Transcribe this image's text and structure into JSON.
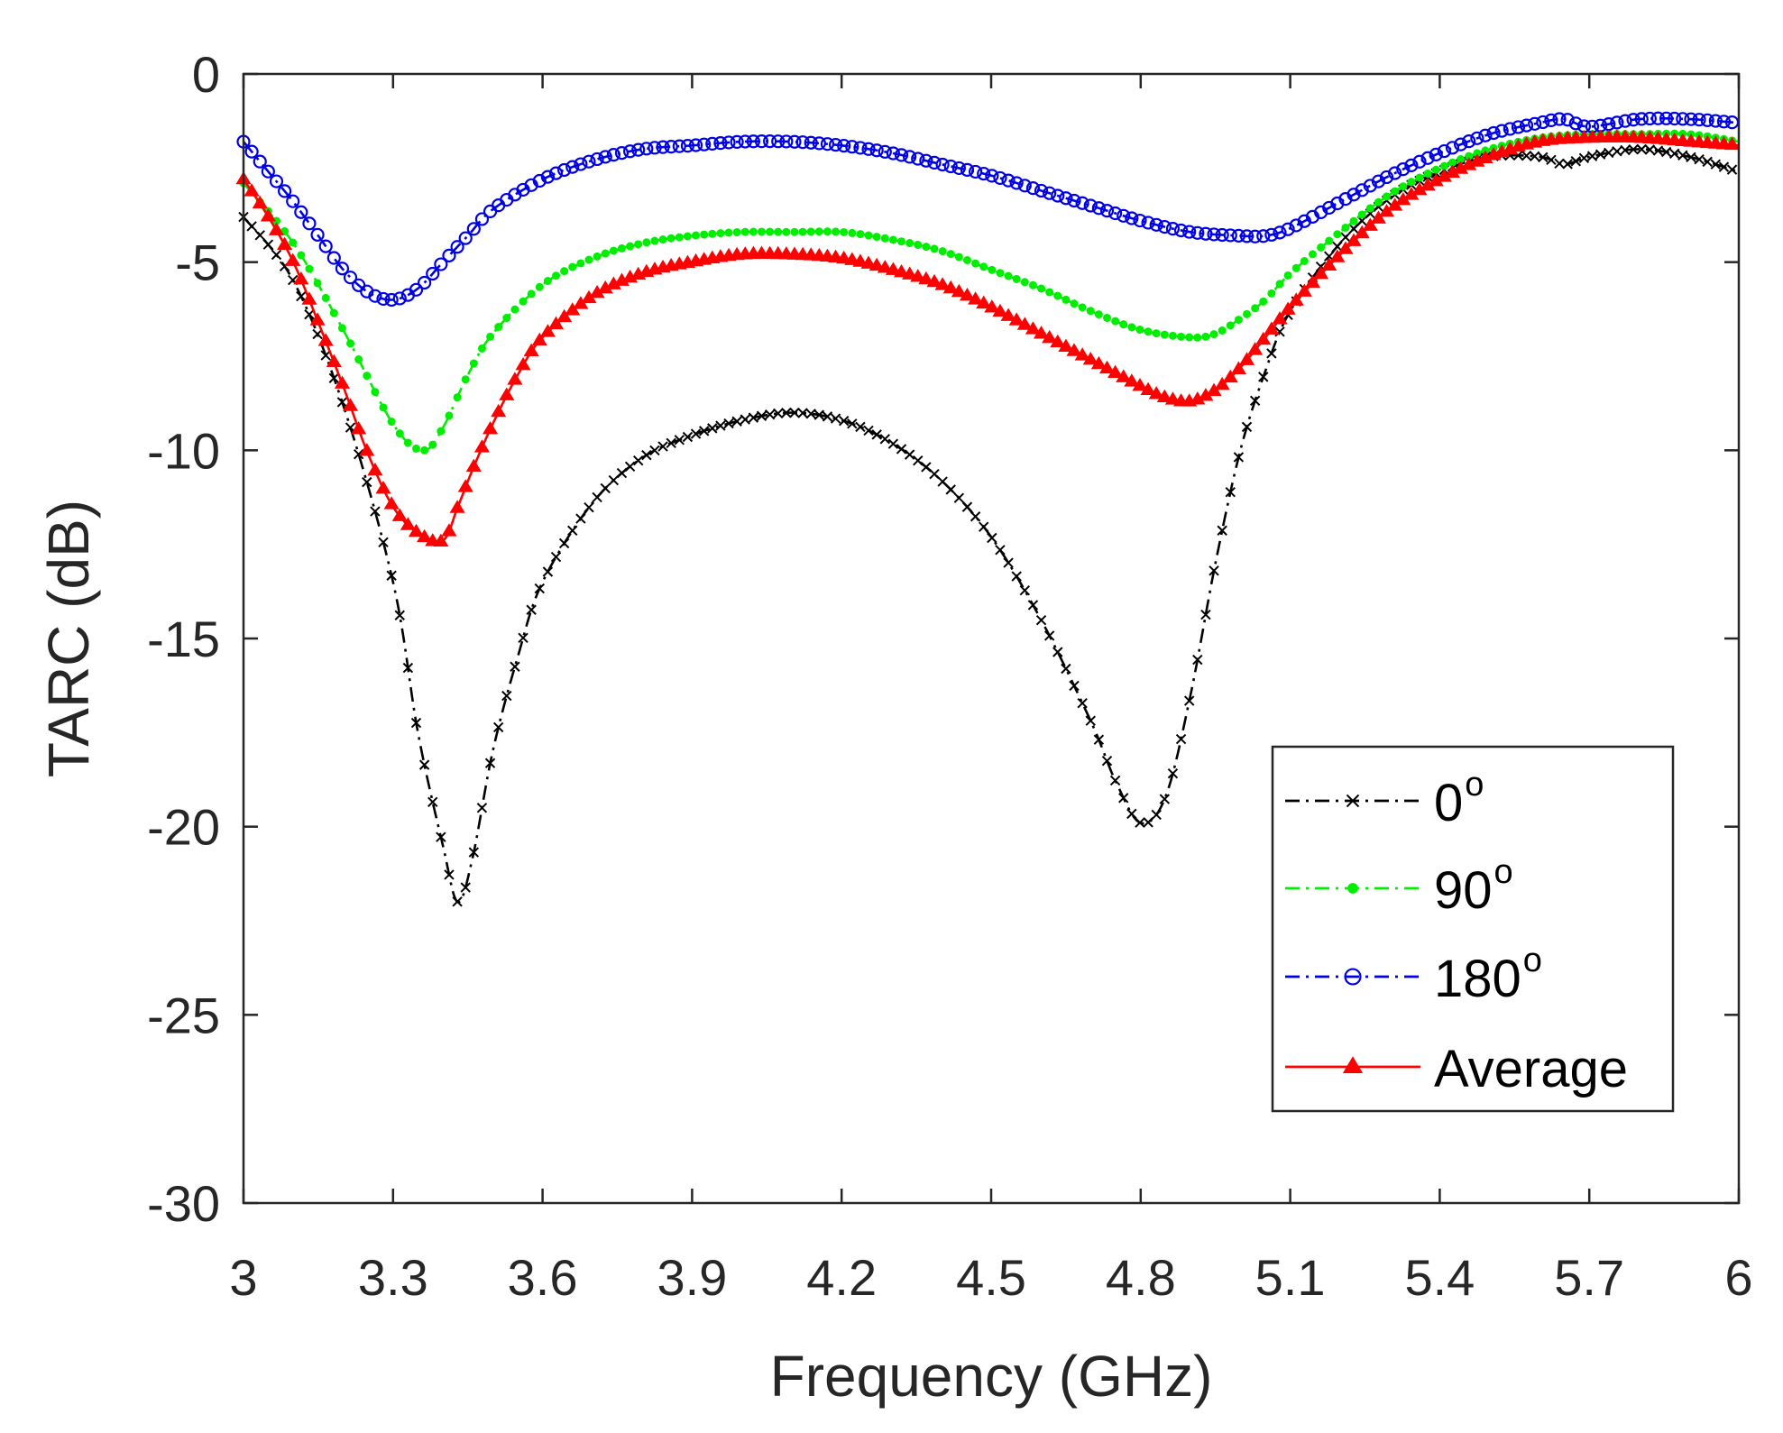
{
  "chart_data": {
    "type": "line",
    "title": "",
    "xlabel": "Frequency (GHz)",
    "ylabel": "TARC (dB)",
    "xlim": [
      3,
      6
    ],
    "ylim": [
      -30,
      0
    ],
    "xticks": [
      3,
      3.3,
      3.6,
      3.9,
      4.2,
      4.5,
      4.8,
      5.1,
      5.4,
      5.7,
      6
    ],
    "xtick_labels": [
      "3",
      "3.3",
      "3.6",
      "3.9",
      "4.2",
      "4.5",
      "4.8",
      "5.1",
      "5.4",
      "5.7",
      "6"
    ],
    "yticks": [
      0,
      -5,
      -10,
      -15,
      -20,
      -25,
      -30
    ],
    "ytick_labels": [
      "0",
      "-5",
      "-10",
      "-15",
      "-20",
      "-25",
      "-30"
    ],
    "legend_position": "lower-right",
    "series": [
      {
        "name": "0",
        "superscript": "o",
        "color": "#000000",
        "marker": "x",
        "linestyle": "dashdot",
        "x": [
          3.0,
          3.1,
          3.2,
          3.3,
          3.35,
          3.4,
          3.43,
          3.46,
          3.5,
          3.55,
          3.6,
          3.7,
          3.8,
          3.9,
          4.0,
          4.1,
          4.2,
          4.3,
          4.4,
          4.5,
          4.6,
          4.7,
          4.75,
          4.8,
          4.85,
          4.9,
          4.95,
          5.0,
          5.05,
          5.1,
          5.2,
          5.3,
          5.4,
          5.5,
          5.6,
          5.65,
          5.7,
          5.8,
          5.9,
          6.0
        ],
        "y": [
          -3.8,
          -5.5,
          -8.8,
          -13.5,
          -17.5,
          -20.5,
          -22.0,
          -20.8,
          -18.0,
          -15.5,
          -13.5,
          -11.4,
          -10.2,
          -9.6,
          -9.2,
          -9.0,
          -9.2,
          -9.8,
          -10.8,
          -12.3,
          -14.5,
          -17.2,
          -18.8,
          -19.9,
          -19.2,
          -16.5,
          -13.0,
          -10.0,
          -7.9,
          -6.3,
          -4.5,
          -3.3,
          -2.6,
          -2.2,
          -2.2,
          -2.4,
          -2.2,
          -2.0,
          -2.2,
          -2.6
        ]
      },
      {
        "name": "90",
        "superscript": "o",
        "color": "#00ee00",
        "marker": "dot",
        "linestyle": "dashdot",
        "x": [
          3.0,
          3.1,
          3.2,
          3.3,
          3.36,
          3.4,
          3.45,
          3.5,
          3.6,
          3.7,
          3.8,
          3.9,
          4.0,
          4.1,
          4.2,
          4.3,
          4.4,
          4.5,
          4.6,
          4.7,
          4.8,
          4.9,
          4.95,
          5.0,
          5.05,
          5.1,
          5.2,
          5.3,
          5.4,
          5.5,
          5.6,
          5.7,
          5.8,
          5.9,
          6.0
        ],
        "y": [
          -2.9,
          -4.5,
          -6.8,
          -9.3,
          -10.0,
          -9.4,
          -8.0,
          -6.9,
          -5.6,
          -4.9,
          -4.5,
          -4.3,
          -4.2,
          -4.2,
          -4.2,
          -4.4,
          -4.7,
          -5.2,
          -5.7,
          -6.3,
          -6.8,
          -7.0,
          -6.9,
          -6.5,
          -6.0,
          -5.3,
          -4.2,
          -3.2,
          -2.5,
          -2.0,
          -1.7,
          -1.6,
          -1.6,
          -1.6,
          -1.8
        ]
      },
      {
        "name": "180",
        "superscript": "o",
        "color": "#0000e6",
        "marker": "circle",
        "linestyle": "dashdot",
        "x": [
          3.0,
          3.05,
          3.1,
          3.15,
          3.2,
          3.25,
          3.3,
          3.35,
          3.4,
          3.45,
          3.5,
          3.6,
          3.7,
          3.8,
          3.9,
          4.0,
          4.1,
          4.2,
          4.3,
          4.4,
          4.5,
          4.6,
          4.7,
          4.8,
          4.9,
          5.0,
          5.05,
          5.1,
          5.2,
          5.3,
          5.4,
          5.5,
          5.6,
          5.65,
          5.7,
          5.8,
          5.9,
          6.0
        ],
        "y": [
          -1.8,
          -2.6,
          -3.4,
          -4.3,
          -5.2,
          -5.8,
          -6.0,
          -5.7,
          -5.0,
          -4.3,
          -3.6,
          -2.8,
          -2.3,
          -2.0,
          -1.9,
          -1.8,
          -1.8,
          -1.9,
          -2.1,
          -2.4,
          -2.7,
          -3.1,
          -3.5,
          -3.9,
          -4.2,
          -4.3,
          -4.3,
          -4.1,
          -3.4,
          -2.7,
          -2.1,
          -1.6,
          -1.3,
          -1.2,
          -1.4,
          -1.2,
          -1.2,
          -1.3
        ]
      },
      {
        "name": "Average",
        "superscript": "",
        "color": "#ff0000",
        "marker": "triangle",
        "linestyle": "solid",
        "x": [
          3.0,
          3.05,
          3.1,
          3.15,
          3.2,
          3.25,
          3.3,
          3.35,
          3.4,
          3.43,
          3.46,
          3.5,
          3.55,
          3.6,
          3.7,
          3.8,
          3.9,
          4.0,
          4.1,
          4.2,
          4.3,
          4.4,
          4.5,
          4.6,
          4.7,
          4.8,
          4.85,
          4.9,
          4.95,
          5.0,
          5.05,
          5.1,
          5.2,
          5.3,
          5.4,
          5.5,
          5.6,
          5.7,
          5.8,
          5.9,
          6.0
        ],
        "y": [
          -2.8,
          -3.8,
          -5.0,
          -6.6,
          -8.3,
          -10.1,
          -11.5,
          -12.2,
          -12.4,
          -11.5,
          -10.5,
          -9.3,
          -8.0,
          -7.0,
          -5.9,
          -5.3,
          -5.0,
          -4.8,
          -4.8,
          -4.9,
          -5.2,
          -5.6,
          -6.2,
          -6.9,
          -7.6,
          -8.3,
          -8.6,
          -8.7,
          -8.4,
          -7.8,
          -7.0,
          -6.2,
          -4.8,
          -3.6,
          -2.8,
          -2.2,
          -1.8,
          -1.7,
          -1.7,
          -1.8,
          -1.9
        ]
      }
    ]
  }
}
